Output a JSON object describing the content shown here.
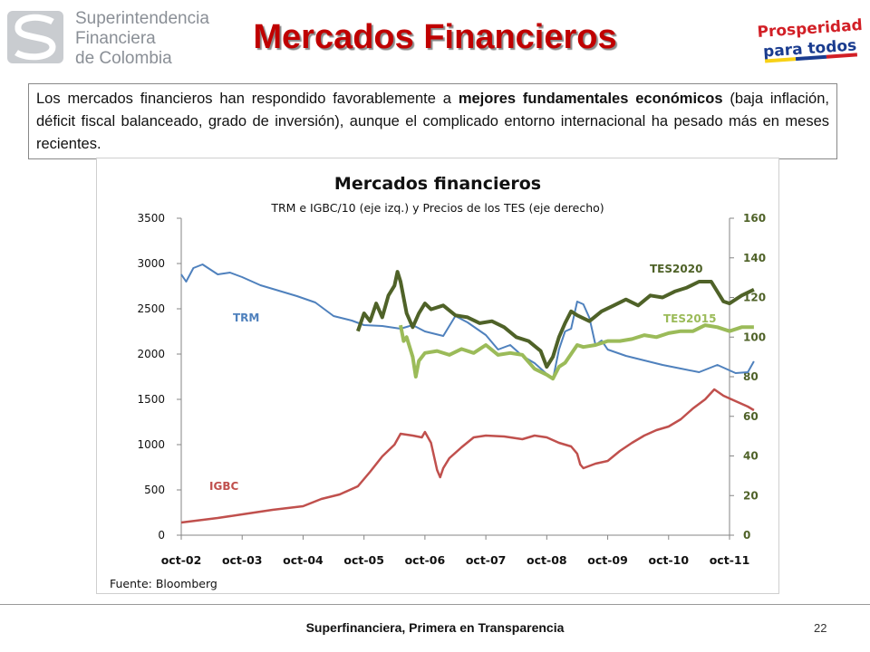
{
  "header": {
    "org_lines": [
      "Superintendencia",
      "Financiera",
      "de Colombia"
    ],
    "title": "Mercados Financieros",
    "logo_right_lines": [
      "Prosperidad",
      "para todos"
    ]
  },
  "intro": {
    "part1": "Los mercados financieros han respondido favorablemente a ",
    "bold": "mejores fundamentales económicos",
    "part2": " (baja inflación, déficit fiscal balanceado, grado de inversión), aunque el complicado entorno internacional ha pesado más en meses recientes."
  },
  "chart_data": {
    "type": "line",
    "title": "Mercados financieros",
    "subtitle": "TRM e IGBC/10 (eje izq.) y Precios de los TES (eje derecho)",
    "source": "Fuente: Bloomberg",
    "x_ticks": [
      "oct-02",
      "oct-03",
      "oct-04",
      "oct-05",
      "oct-06",
      "oct-07",
      "oct-08",
      "oct-09",
      "oct-10",
      "oct-11"
    ],
    "y_left": {
      "min": 0,
      "max": 3500,
      "ticks": [
        0,
        500,
        1000,
        1500,
        2000,
        2500,
        3000,
        3500
      ]
    },
    "y_right": {
      "min": 0,
      "max": 160,
      "ticks": [
        0,
        20,
        40,
        60,
        80,
        100,
        120,
        140,
        160
      ]
    },
    "series": [
      {
        "name": "TRM",
        "axis": "left",
        "color": "#4f81bd",
        "points": [
          [
            0,
            2880
          ],
          [
            0.08,
            2800
          ],
          [
            0.2,
            2950
          ],
          [
            0.35,
            2990
          ],
          [
            0.6,
            2880
          ],
          [
            0.8,
            2900
          ],
          [
            1.0,
            2850
          ],
          [
            1.3,
            2760
          ],
          [
            1.6,
            2700
          ],
          [
            1.9,
            2640
          ],
          [
            2.2,
            2570
          ],
          [
            2.5,
            2420
          ],
          [
            2.8,
            2370
          ],
          [
            3.0,
            2320
          ],
          [
            3.3,
            2310
          ],
          [
            3.6,
            2280
          ],
          [
            3.8,
            2320
          ],
          [
            4.0,
            2250
          ],
          [
            4.3,
            2200
          ],
          [
            4.5,
            2420
          ],
          [
            4.7,
            2350
          ],
          [
            5.0,
            2210
          ],
          [
            5.2,
            2050
          ],
          [
            5.4,
            2100
          ],
          [
            5.6,
            1980
          ],
          [
            5.8,
            1900
          ],
          [
            6.0,
            1780
          ],
          [
            6.1,
            1720
          ],
          [
            6.2,
            2050
          ],
          [
            6.3,
            2250
          ],
          [
            6.4,
            2280
          ],
          [
            6.5,
            2580
          ],
          [
            6.6,
            2550
          ],
          [
            6.7,
            2400
          ],
          [
            6.8,
            2100
          ],
          [
            6.9,
            2150
          ],
          [
            7.0,
            2050
          ],
          [
            7.3,
            1980
          ],
          [
            7.6,
            1930
          ],
          [
            7.9,
            1880
          ],
          [
            8.2,
            1840
          ],
          [
            8.5,
            1800
          ],
          [
            8.8,
            1880
          ],
          [
            9.1,
            1790
          ],
          [
            9.3,
            1800
          ],
          [
            9.4,
            1920
          ]
        ]
      },
      {
        "name": "IGBC",
        "axis": "left",
        "color": "#c0504d",
        "points": [
          [
            0,
            140
          ],
          [
            0.3,
            165
          ],
          [
            0.6,
            190
          ],
          [
            1.0,
            230
          ],
          [
            1.5,
            280
          ],
          [
            2.0,
            320
          ],
          [
            2.3,
            400
          ],
          [
            2.6,
            450
          ],
          [
            2.9,
            540
          ],
          [
            3.1,
            700
          ],
          [
            3.3,
            870
          ],
          [
            3.5,
            1000
          ],
          [
            3.6,
            1120
          ],
          [
            3.8,
            1100
          ],
          [
            3.95,
            1080
          ],
          [
            4.0,
            1140
          ],
          [
            4.1,
            1020
          ],
          [
            4.2,
            720
          ],
          [
            4.25,
            640
          ],
          [
            4.3,
            740
          ],
          [
            4.4,
            850
          ],
          [
            4.6,
            970
          ],
          [
            4.8,
            1080
          ],
          [
            5.0,
            1100
          ],
          [
            5.3,
            1090
          ],
          [
            5.6,
            1060
          ],
          [
            5.8,
            1100
          ],
          [
            6.0,
            1080
          ],
          [
            6.2,
            1020
          ],
          [
            6.4,
            980
          ],
          [
            6.5,
            900
          ],
          [
            6.55,
            780
          ],
          [
            6.6,
            740
          ],
          [
            6.8,
            790
          ],
          [
            7.0,
            820
          ],
          [
            7.2,
            930
          ],
          [
            7.4,
            1020
          ],
          [
            7.6,
            1100
          ],
          [
            7.8,
            1160
          ],
          [
            8.0,
            1200
          ],
          [
            8.2,
            1280
          ],
          [
            8.4,
            1400
          ],
          [
            8.6,
            1500
          ],
          [
            8.75,
            1610
          ],
          [
            8.9,
            1540
          ],
          [
            9.1,
            1480
          ],
          [
            9.3,
            1420
          ],
          [
            9.4,
            1380
          ]
        ]
      },
      {
        "name": "TES2020",
        "axis": "right",
        "color": "#4f6228",
        "points": [
          [
            2.9,
            103
          ],
          [
            3.0,
            112
          ],
          [
            3.1,
            108
          ],
          [
            3.2,
            117
          ],
          [
            3.3,
            110
          ],
          [
            3.4,
            121
          ],
          [
            3.5,
            126
          ],
          [
            3.55,
            133
          ],
          [
            3.6,
            128
          ],
          [
            3.7,
            112
          ],
          [
            3.8,
            105
          ],
          [
            3.9,
            112
          ],
          [
            4.0,
            117
          ],
          [
            4.1,
            114
          ],
          [
            4.3,
            116
          ],
          [
            4.5,
            111
          ],
          [
            4.7,
            110
          ],
          [
            4.9,
            107
          ],
          [
            5.1,
            108
          ],
          [
            5.3,
            105
          ],
          [
            5.5,
            100
          ],
          [
            5.7,
            98
          ],
          [
            5.9,
            93
          ],
          [
            6.0,
            85
          ],
          [
            6.1,
            90
          ],
          [
            6.2,
            100
          ],
          [
            6.3,
            107
          ],
          [
            6.4,
            113
          ],
          [
            6.5,
            111
          ],
          [
            6.7,
            108
          ],
          [
            6.9,
            113
          ],
          [
            7.1,
            116
          ],
          [
            7.3,
            119
          ],
          [
            7.5,
            116
          ],
          [
            7.7,
            121
          ],
          [
            7.9,
            120
          ],
          [
            8.1,
            123
          ],
          [
            8.3,
            125
          ],
          [
            8.5,
            128
          ],
          [
            8.7,
            128
          ],
          [
            8.9,
            118
          ],
          [
            9.0,
            117
          ],
          [
            9.2,
            121
          ],
          [
            9.4,
            124
          ]
        ]
      },
      {
        "name": "TES2015",
        "axis": "right",
        "color": "#9bbb59",
        "points": [
          [
            3.6,
            106
          ],
          [
            3.65,
            98
          ],
          [
            3.7,
            100
          ],
          [
            3.8,
            90
          ],
          [
            3.85,
            80
          ],
          [
            3.9,
            88
          ],
          [
            4.0,
            92
          ],
          [
            4.2,
            93
          ],
          [
            4.4,
            91
          ],
          [
            4.6,
            94
          ],
          [
            4.8,
            92
          ],
          [
            5.0,
            96
          ],
          [
            5.2,
            91
          ],
          [
            5.4,
            92
          ],
          [
            5.6,
            91
          ],
          [
            5.8,
            84
          ],
          [
            6.0,
            81
          ],
          [
            6.1,
            79
          ],
          [
            6.2,
            85
          ],
          [
            6.3,
            87
          ],
          [
            6.5,
            96
          ],
          [
            6.6,
            95
          ],
          [
            6.8,
            96
          ],
          [
            7.0,
            98
          ],
          [
            7.2,
            98
          ],
          [
            7.4,
            99
          ],
          [
            7.6,
            101
          ],
          [
            7.8,
            100
          ],
          [
            8.0,
            102
          ],
          [
            8.2,
            103
          ],
          [
            8.4,
            103
          ],
          [
            8.6,
            106
          ],
          [
            8.8,
            105
          ],
          [
            9.0,
            103
          ],
          [
            9.2,
            105
          ],
          [
            9.4,
            105
          ]
        ]
      }
    ],
    "grid": false,
    "legend": "inline labels"
  },
  "footer": {
    "text": "Superfinanciera, Primera en Transparencia",
    "page": "22"
  }
}
